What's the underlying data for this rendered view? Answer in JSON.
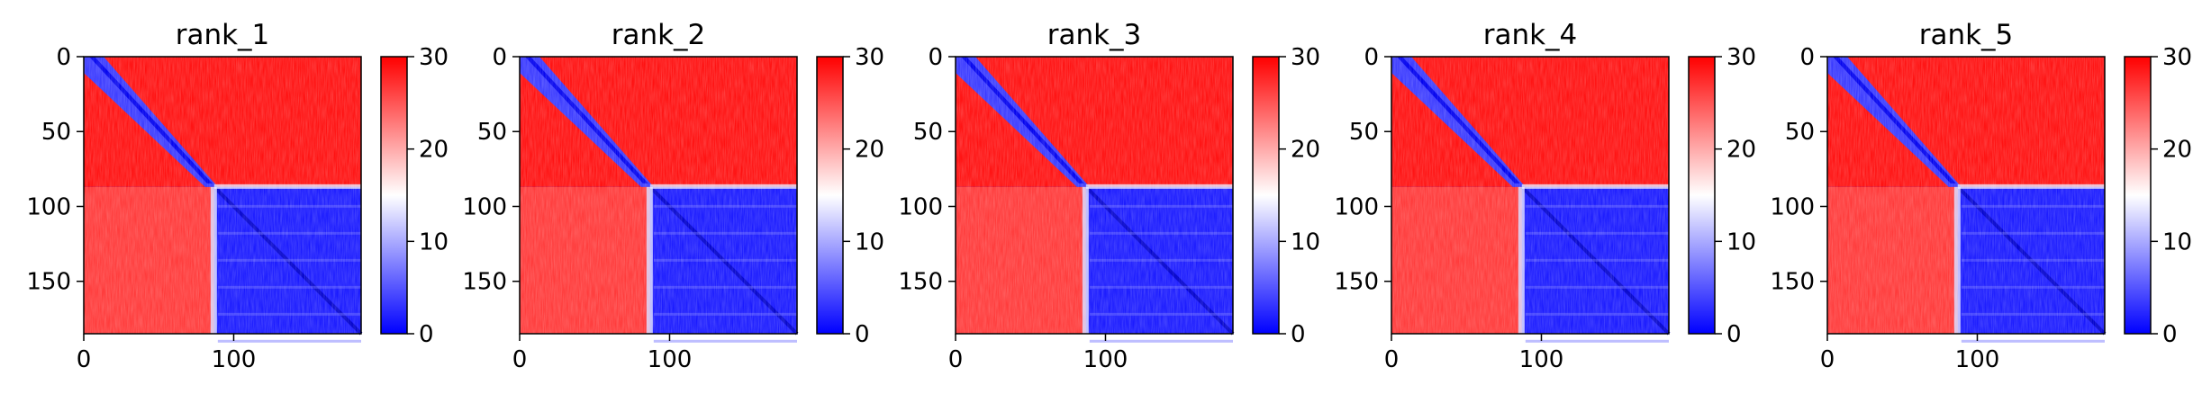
{
  "chart_data": [
    {
      "type": "heatmap",
      "title": "rank_1",
      "matrix_size": 185,
      "domain_boundary": 87,
      "x_ticks": [
        0,
        100
      ],
      "y_ticks": [
        0,
        50,
        100,
        150
      ],
      "x_range": [
        0,
        185
      ],
      "y_range": [
        0,
        185
      ],
      "colorbar": {
        "range": [
          0,
          30
        ],
        "ticks": [
          0,
          10,
          20,
          30
        ],
        "colors": [
          "#0000ff",
          "#ffffff",
          "#ff0000"
        ]
      }
    },
    {
      "type": "heatmap",
      "title": "rank_2",
      "matrix_size": 185,
      "domain_boundary": 87,
      "x_ticks": [
        0,
        100
      ],
      "y_ticks": [
        0,
        50,
        100,
        150
      ],
      "x_range": [
        0,
        185
      ],
      "y_range": [
        0,
        185
      ],
      "colorbar": {
        "range": [
          0,
          30
        ],
        "ticks": [
          0,
          10,
          20,
          30
        ],
        "colors": [
          "#0000ff",
          "#ffffff",
          "#ff0000"
        ]
      }
    },
    {
      "type": "heatmap",
      "title": "rank_3",
      "matrix_size": 185,
      "domain_boundary": 87,
      "x_ticks": [
        0,
        100
      ],
      "y_ticks": [
        0,
        50,
        100,
        150
      ],
      "x_range": [
        0,
        185
      ],
      "y_range": [
        0,
        185
      ],
      "colorbar": {
        "range": [
          0,
          30
        ],
        "ticks": [
          0,
          10,
          20,
          30
        ],
        "colors": [
          "#0000ff",
          "#ffffff",
          "#ff0000"
        ]
      }
    },
    {
      "type": "heatmap",
      "title": "rank_4",
      "matrix_size": 185,
      "domain_boundary": 87,
      "x_ticks": [
        0,
        100
      ],
      "y_ticks": [
        0,
        50,
        100,
        150
      ],
      "x_range": [
        0,
        185
      ],
      "y_range": [
        0,
        185
      ],
      "colorbar": {
        "range": [
          0,
          30
        ],
        "ticks": [
          0,
          10,
          20,
          30
        ],
        "colors": [
          "#0000ff",
          "#ffffff",
          "#ff0000"
        ]
      }
    },
    {
      "type": "heatmap",
      "title": "rank_5",
      "matrix_size": 185,
      "domain_boundary": 87,
      "x_ticks": [
        0,
        100
      ],
      "y_ticks": [
        0,
        50,
        100,
        150
      ],
      "x_range": [
        0,
        185
      ],
      "y_range": [
        0,
        185
      ],
      "colorbar": {
        "range": [
          0,
          30
        ],
        "ticks": [
          0,
          10,
          20,
          30
        ],
        "colors": [
          "#0000ff",
          "#ffffff",
          "#ff0000"
        ]
      }
    }
  ]
}
